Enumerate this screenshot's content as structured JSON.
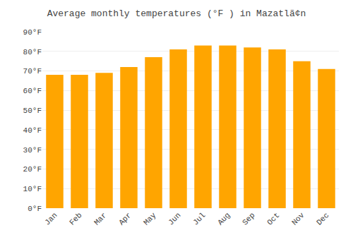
{
  "chart_data": {
    "type": "bar",
    "title": "Average monthly temperatures (°F ) in Mazatlã¢n",
    "categories": [
      "Jan",
      "Feb",
      "Mar",
      "Apr",
      "May",
      "Jun",
      "Jul",
      "Aug",
      "Sep",
      "Oct",
      "Nov",
      "Dec"
    ],
    "values": [
      68,
      68,
      69,
      72,
      77,
      81,
      83,
      83,
      82,
      81,
      75,
      71
    ],
    "color": "#FFA500",
    "ylim": [
      0,
      90
    ],
    "yticks": [
      {
        "value": 0,
        "label": "0°F"
      },
      {
        "value": 10,
        "label": "10°F"
      },
      {
        "value": 20,
        "label": "20°F"
      },
      {
        "value": 30,
        "label": "30°F"
      },
      {
        "value": 40,
        "label": "40°F"
      },
      {
        "value": 50,
        "label": "50°F"
      },
      {
        "value": 60,
        "label": "60°F"
      },
      {
        "value": 70,
        "label": "70°F"
      },
      {
        "value": 80,
        "label": "80°F"
      },
      {
        "value": 90,
        "label": "90°F"
      }
    ],
    "grid": true
  }
}
